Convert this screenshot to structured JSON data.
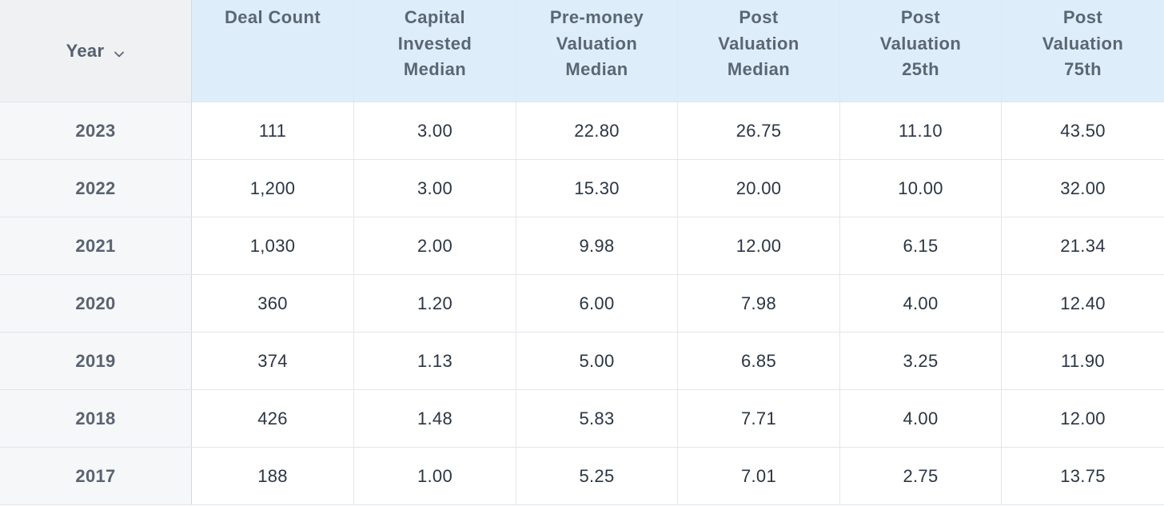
{
  "table": {
    "year_header": "Year",
    "columns": [
      "Deal Count",
      "Capital\nInvested\nMedian",
      "Pre-money\nValuation\nMedian",
      "Post\nValuation\nMedian",
      "Post\nValuation\n25th",
      "Post\nValuation\n75th"
    ],
    "rows": [
      {
        "year": "2023",
        "values": [
          "111",
          "3.00",
          "22.80",
          "26.75",
          "11.10",
          "43.50"
        ]
      },
      {
        "year": "2022",
        "values": [
          "1,200",
          "3.00",
          "15.30",
          "20.00",
          "10.00",
          "32.00"
        ]
      },
      {
        "year": "2021",
        "values": [
          "1,030",
          "2.00",
          "9.98",
          "12.00",
          "6.15",
          "21.34"
        ]
      },
      {
        "year": "2020",
        "values": [
          "360",
          "1.20",
          "6.00",
          "7.98",
          "4.00",
          "12.40"
        ]
      },
      {
        "year": "2019",
        "values": [
          "374",
          "1.13",
          "5.00",
          "6.85",
          "3.25",
          "11.90"
        ]
      },
      {
        "year": "2018",
        "values": [
          "426",
          "1.48",
          "5.83",
          "7.71",
          "4.00",
          "12.00"
        ]
      },
      {
        "year": "2017",
        "values": [
          "188",
          "1.00",
          "5.25",
          "7.01",
          "2.75",
          "13.75"
        ]
      }
    ]
  },
  "icons": {
    "sort": "chevron-down-icon"
  },
  "colors": {
    "header_bg": "#ddeefa",
    "year_header_bg": "#f0f1f3",
    "year_col_bg": "#f5f7f9",
    "text": "#2b3543"
  }
}
